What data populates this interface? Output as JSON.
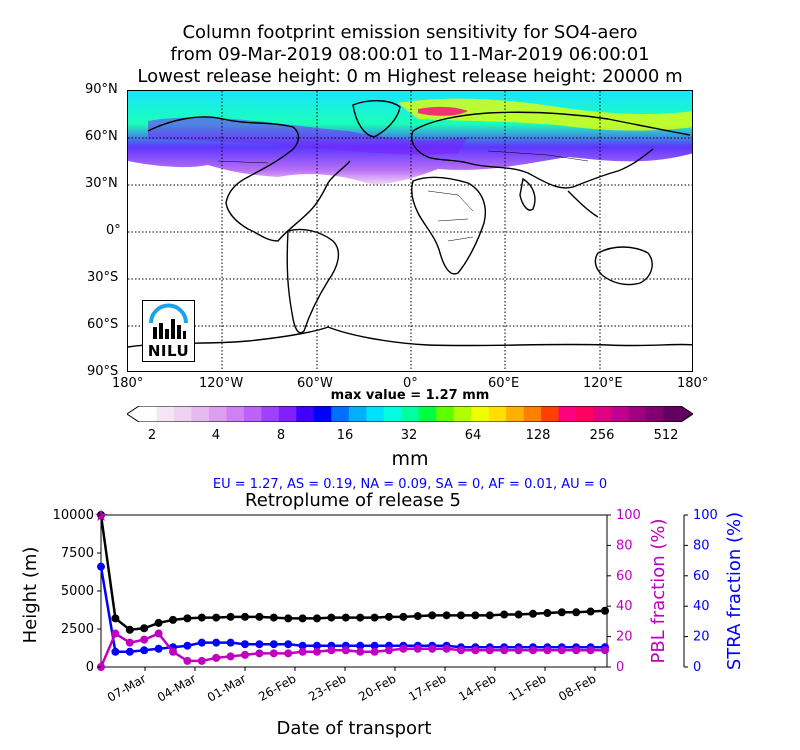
{
  "header": {
    "title_line1": "Column footprint emission sensitivity for SO4-aero",
    "title_line2": "from 09-Mar-2019 08:00:01 to 11-Mar-2019 06:00:01",
    "title_line3": "Lowest release height: 0 m       Highest release height: 20000 m"
  },
  "map": {
    "lat_ticks": [
      "90°N",
      "60°N",
      "30°N",
      "0°",
      "30°S",
      "60°S",
      "90°S"
    ],
    "lon_ticks": [
      "180°",
      "120°W",
      "60°W",
      "0°",
      "60°E",
      "120°E",
      "180°"
    ],
    "logo_text": "NILU"
  },
  "colorbar": {
    "max_value_text": "max value = 1.27 mm",
    "tick_labels": [
      "2",
      "4",
      "8",
      "16",
      "32",
      "64",
      "128",
      "256",
      "512"
    ],
    "unit": "mm",
    "colors": [
      "#ffffff",
      "#f5e6f5",
      "#efd2f0",
      "#e6b8f0",
      "#dc9ff0",
      "#d080f5",
      "#c060fa",
      "#a040ff",
      "#8020ff",
      "#4000ff",
      "#0000ff",
      "#0070ff",
      "#00b0ff",
      "#00e0ff",
      "#00ffe0",
      "#00ffa0",
      "#00ff40",
      "#60ff00",
      "#b0ff00",
      "#f0ff00",
      "#ffe000",
      "#ffb000",
      "#ff8000",
      "#ff4000",
      "#ff0080",
      "#ff0060",
      "#e00080",
      "#c00090",
      "#a00080",
      "#800070",
      "#600060"
    ]
  },
  "fractions_text": "EU = 1.27,  AS = 0.19,  NA = 0.09,  SA = 0,  AF = 0.01,  AU = 0",
  "chart_data": {
    "type": "line",
    "title": "Retroplume of release 5",
    "xlabel": "Date of transport",
    "ylabel": "Height (m)",
    "ylabel_right1": "PBL fraction (%)",
    "ylabel_right2": "STRA fraction (%)",
    "x_tick_labels": [
      "07-Mar",
      "04-Mar",
      "01-Mar",
      "26-Feb",
      "23-Feb",
      "20-Feb",
      "17-Feb",
      "14-Feb",
      "11-Feb",
      "08-Feb"
    ],
    "y_ticks": [
      "0",
      "2500",
      "5000",
      "7500",
      "10000"
    ],
    "right_ticks": [
      "0",
      "20",
      "40",
      "60",
      "80",
      "100"
    ],
    "ylim": [
      0,
      10000
    ],
    "ylim_right": [
      0,
      100
    ],
    "colors": {
      "height": "#000000",
      "pbl": "#c000c0",
      "stra": "#0000ff"
    },
    "series": [
      {
        "values": [
          10000,
          3200,
          2450,
          2550,
          2900,
          3100,
          3200,
          3250,
          3250,
          3300,
          3300,
          3300,
          3250,
          3200,
          3200,
          3200,
          3250,
          3250,
          3250,
          3250,
          3300,
          3300,
          3350,
          3400,
          3400,
          3400,
          3400,
          3400,
          3450,
          3450,
          3500,
          3550,
          3600,
          3600,
          3650,
          3700
        ]
      },
      {
        "values": [
          0,
          22,
          16,
          18,
          22,
          10,
          4,
          4,
          6,
          7,
          8,
          9,
          9,
          9,
          10,
          10,
          11,
          11,
          10,
          10,
          11,
          12,
          12,
          12,
          12,
          11,
          11,
          11,
          11,
          11,
          11,
          11,
          11,
          11,
          11,
          11
        ]
      },
      {
        "values": [
          66,
          10,
          10,
          11,
          12,
          13,
          14,
          16,
          16,
          16,
          15,
          15,
          15,
          15,
          14,
          14,
          14,
          14,
          14,
          14,
          14,
          14,
          14,
          14,
          14,
          13,
          13,
          13,
          13,
          13,
          13,
          13,
          13,
          13,
          13,
          13
        ]
      }
    ]
  }
}
